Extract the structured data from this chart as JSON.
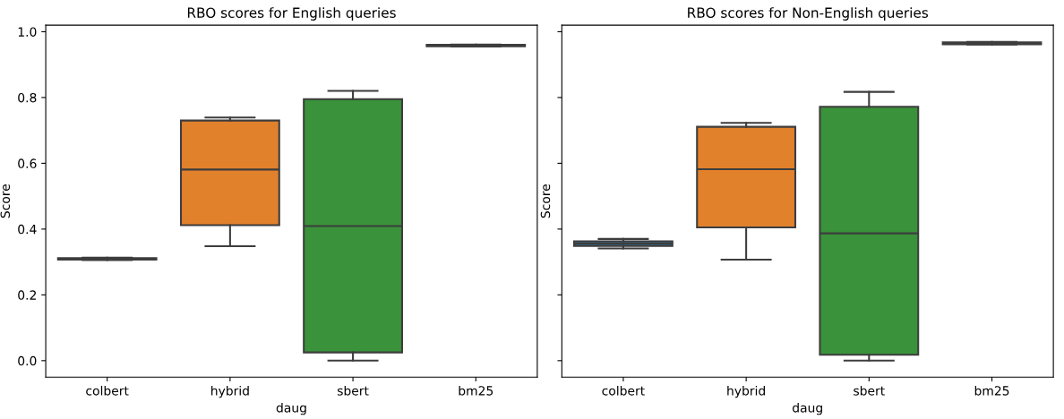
{
  "chart_data": [
    {
      "type": "box",
      "title": "RBO scores for English queries",
      "xlabel": "daug",
      "ylabel": "Score",
      "categories": [
        "colbert",
        "hybrid",
        "sbert",
        "bm25"
      ],
      "colors": [
        "#3274a1",
        "#e1812c",
        "#3a923a",
        "#c03d3e"
      ],
      "ylim": [
        -0.05,
        1.02
      ],
      "yticks": [
        {
          "value": 0,
          "label": "0.0"
        },
        0.2,
        0.4,
        0.6,
        0.8,
        {
          "value": 1,
          "label": "1.0"
        }
      ],
      "grid": false,
      "boxes": [
        {
          "low": 0.306,
          "q1": 0.307,
          "median": 0.309,
          "q3": 0.312,
          "high": 0.313
        },
        {
          "low": 0.348,
          "q1": 0.412,
          "median": 0.581,
          "q3": 0.73,
          "high": 0.739
        },
        {
          "low": 0.0,
          "q1": 0.025,
          "median": 0.409,
          "q3": 0.795,
          "high": 0.82
        },
        {
          "low": 0.955,
          "q1": 0.956,
          "median": 0.958,
          "q3": 0.96,
          "high": 0.961
        }
      ]
    },
    {
      "type": "box",
      "title": "RBO scores for Non-English queries",
      "xlabel": "daug",
      "ylabel": "Score",
      "categories": [
        "colbert",
        "hybrid",
        "sbert",
        "bm25"
      ],
      "colors": [
        "#3274a1",
        "#e1812c",
        "#3a923a",
        "#c03d3e"
      ],
      "ylim": [
        -0.05,
        1.02
      ],
      "yticks": [
        {
          "value": 0,
          "label": null
        },
        {
          "value": 0.2,
          "label": null
        },
        {
          "value": 0.4,
          "label": null
        },
        {
          "value": 0.6,
          "label": null
        },
        {
          "value": 0.8,
          "label": null
        },
        {
          "value": 1,
          "label": null
        }
      ],
      "grid": false,
      "tick_labels": "x",
      "boxes": [
        {
          "low": 0.341,
          "q1": 0.349,
          "median": 0.356,
          "q3": 0.363,
          "high": 0.37
        },
        {
          "low": 0.307,
          "q1": 0.405,
          "median": 0.582,
          "q3": 0.711,
          "high": 0.723
        },
        {
          "low": 0.0,
          "q1": 0.018,
          "median": 0.387,
          "q3": 0.772,
          "high": 0.817
        },
        {
          "low": 0.961,
          "q1": 0.962,
          "median": 0.966,
          "q3": 0.968,
          "high": 0.969
        }
      ]
    }
  ]
}
